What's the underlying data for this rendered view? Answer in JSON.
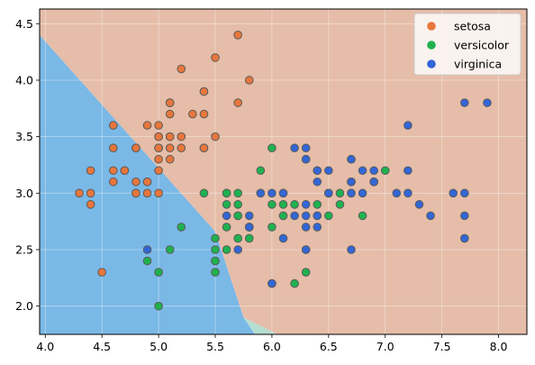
{
  "chart_data": {
    "type": "scatter",
    "title": "",
    "xlabel": "",
    "ylabel": "",
    "xlim": [
      3.95,
      8.25
    ],
    "ylim": [
      1.75,
      4.63
    ],
    "x_ticks": [
      "4.0",
      "4.5",
      "5.0",
      "5.5",
      "6.0",
      "6.5",
      "7.0",
      "7.5",
      "8.0"
    ],
    "y_ticks": [
      "2.0",
      "2.5",
      "3.0",
      "3.5",
      "4.0",
      "4.5"
    ],
    "grid": true,
    "legend_position": "top-right",
    "background_regions": [
      {
        "class": "virginica",
        "color": "#7ab8e6",
        "polygon": [
          [
            3.95,
            4.4
          ],
          [
            5.5,
            2.66
          ],
          [
            5.75,
            1.9
          ],
          [
            5.85,
            1.75
          ],
          [
            3.95,
            1.75
          ]
        ]
      },
      {
        "class": "versicolor",
        "color": "#b6ddd2",
        "polygon": [
          [
            5.75,
            1.9
          ],
          [
            5.85,
            1.75
          ],
          [
            6.05,
            1.75
          ]
        ]
      },
      {
        "class": "setosa",
        "color": "#e5bda9",
        "polygon": [
          [
            3.95,
            4.63
          ],
          [
            8.25,
            4.63
          ],
          [
            8.25,
            1.75
          ],
          [
            6.05,
            1.75
          ],
          [
            5.75,
            1.9
          ],
          [
            5.5,
            2.66
          ],
          [
            3.95,
            4.4
          ]
        ]
      }
    ],
    "series": [
      {
        "name": "setosa",
        "color": "#e8763c",
        "points": [
          [
            5.1,
            3.5
          ],
          [
            4.9,
            3.0
          ],
          [
            4.7,
            3.2
          ],
          [
            4.6,
            3.1
          ],
          [
            5.0,
            3.6
          ],
          [
            5.4,
            3.9
          ],
          [
            4.6,
            3.4
          ],
          [
            5.0,
            3.4
          ],
          [
            4.4,
            2.9
          ],
          [
            4.9,
            3.1
          ],
          [
            5.4,
            3.7
          ],
          [
            4.8,
            3.4
          ],
          [
            4.8,
            3.0
          ],
          [
            4.3,
            3.0
          ],
          [
            5.8,
            4.0
          ],
          [
            5.7,
            4.4
          ],
          [
            5.4,
            3.9
          ],
          [
            5.1,
            3.5
          ],
          [
            5.7,
            3.8
          ],
          [
            5.1,
            3.8
          ],
          [
            5.4,
            3.4
          ],
          [
            5.1,
            3.7
          ],
          [
            4.6,
            3.6
          ],
          [
            5.1,
            3.3
          ],
          [
            4.8,
            3.4
          ],
          [
            5.0,
            3.0
          ],
          [
            5.0,
            3.4
          ],
          [
            5.2,
            3.5
          ],
          [
            5.2,
            3.4
          ],
          [
            4.7,
            3.2
          ],
          [
            4.8,
            3.1
          ],
          [
            5.4,
            3.4
          ],
          [
            5.2,
            4.1
          ],
          [
            5.5,
            4.2
          ],
          [
            4.9,
            3.1
          ],
          [
            5.0,
            3.2
          ],
          [
            5.5,
            3.5
          ],
          [
            4.9,
            3.6
          ],
          [
            4.4,
            3.0
          ],
          [
            5.1,
            3.4
          ],
          [
            5.0,
            3.5
          ],
          [
            4.5,
            2.3
          ],
          [
            4.4,
            3.2
          ],
          [
            5.0,
            3.5
          ],
          [
            5.1,
            3.8
          ],
          [
            4.8,
            3.0
          ],
          [
            5.1,
            3.8
          ],
          [
            4.6,
            3.2
          ],
          [
            5.3,
            3.7
          ],
          [
            5.0,
            3.3
          ]
        ]
      },
      {
        "name": "versicolor",
        "color": "#1fb24f",
        "points": [
          [
            7.0,
            3.2
          ],
          [
            6.4,
            3.2
          ],
          [
            6.9,
            3.1
          ],
          [
            5.5,
            2.3
          ],
          [
            6.5,
            2.8
          ],
          [
            5.7,
            2.8
          ],
          [
            6.3,
            3.3
          ],
          [
            4.9,
            2.4
          ],
          [
            6.6,
            2.9
          ],
          [
            5.2,
            2.7
          ],
          [
            5.0,
            2.0
          ],
          [
            5.9,
            3.0
          ],
          [
            6.0,
            2.2
          ],
          [
            6.1,
            2.9
          ],
          [
            5.6,
            2.9
          ],
          [
            6.7,
            3.1
          ],
          [
            5.6,
            3.0
          ],
          [
            5.8,
            2.7
          ],
          [
            6.2,
            2.2
          ],
          [
            5.6,
            2.5
          ],
          [
            5.9,
            3.2
          ],
          [
            6.1,
            2.8
          ],
          [
            6.3,
            2.5
          ],
          [
            6.1,
            2.8
          ],
          [
            6.4,
            2.9
          ],
          [
            6.6,
            3.0
          ],
          [
            6.8,
            2.8
          ],
          [
            6.7,
            3.0
          ],
          [
            6.0,
            2.9
          ],
          [
            5.7,
            2.6
          ],
          [
            5.5,
            2.4
          ],
          [
            5.5,
            2.4
          ],
          [
            5.8,
            2.7
          ],
          [
            6.0,
            2.7
          ],
          [
            5.4,
            3.0
          ],
          [
            6.0,
            3.4
          ],
          [
            6.7,
            3.1
          ],
          [
            6.3,
            2.3
          ],
          [
            5.6,
            3.0
          ],
          [
            5.5,
            2.5
          ],
          [
            5.5,
            2.6
          ],
          [
            6.1,
            3.0
          ],
          [
            5.8,
            2.6
          ],
          [
            5.0,
            2.3
          ],
          [
            5.6,
            2.7
          ],
          [
            5.7,
            3.0
          ],
          [
            5.7,
            2.9
          ],
          [
            6.2,
            2.9
          ],
          [
            5.1,
            2.5
          ],
          [
            5.7,
            2.8
          ]
        ]
      },
      {
        "name": "virginica",
        "color": "#3366d6",
        "points": [
          [
            6.3,
            3.3
          ],
          [
            5.8,
            2.7
          ],
          [
            7.1,
            3.0
          ],
          [
            6.3,
            2.9
          ],
          [
            6.5,
            3.0
          ],
          [
            7.6,
            3.0
          ],
          [
            4.9,
            2.5
          ],
          [
            7.3,
            2.9
          ],
          [
            6.7,
            2.5
          ],
          [
            7.2,
            3.6
          ],
          [
            6.5,
            3.2
          ],
          [
            6.4,
            2.7
          ],
          [
            6.8,
            3.0
          ],
          [
            5.7,
            2.5
          ],
          [
            5.8,
            2.8
          ],
          [
            6.4,
            3.2
          ],
          [
            6.5,
            3.0
          ],
          [
            7.7,
            3.8
          ],
          [
            7.7,
            2.6
          ],
          [
            6.0,
            2.2
          ],
          [
            6.9,
            3.2
          ],
          [
            5.6,
            2.8
          ],
          [
            7.7,
            2.8
          ],
          [
            6.3,
            2.7
          ],
          [
            6.7,
            3.3
          ],
          [
            7.2,
            3.2
          ],
          [
            6.2,
            2.8
          ],
          [
            6.1,
            3.0
          ],
          [
            6.4,
            2.8
          ],
          [
            7.2,
            3.0
          ],
          [
            7.4,
            2.8
          ],
          [
            7.9,
            3.8
          ],
          [
            6.4,
            2.8
          ],
          [
            6.3,
            2.8
          ],
          [
            6.1,
            2.6
          ],
          [
            7.7,
            3.0
          ],
          [
            6.3,
            3.4
          ],
          [
            6.4,
            3.1
          ],
          [
            6.0,
            3.0
          ],
          [
            6.9,
            3.1
          ],
          [
            6.7,
            3.1
          ],
          [
            6.9,
            3.1
          ],
          [
            5.8,
            2.7
          ],
          [
            6.8,
            3.2
          ],
          [
            6.7,
            3.3
          ],
          [
            6.7,
            3.0
          ],
          [
            6.3,
            2.5
          ],
          [
            6.5,
            3.0
          ],
          [
            6.2,
            3.4
          ],
          [
            5.9,
            3.0
          ]
        ]
      }
    ]
  }
}
